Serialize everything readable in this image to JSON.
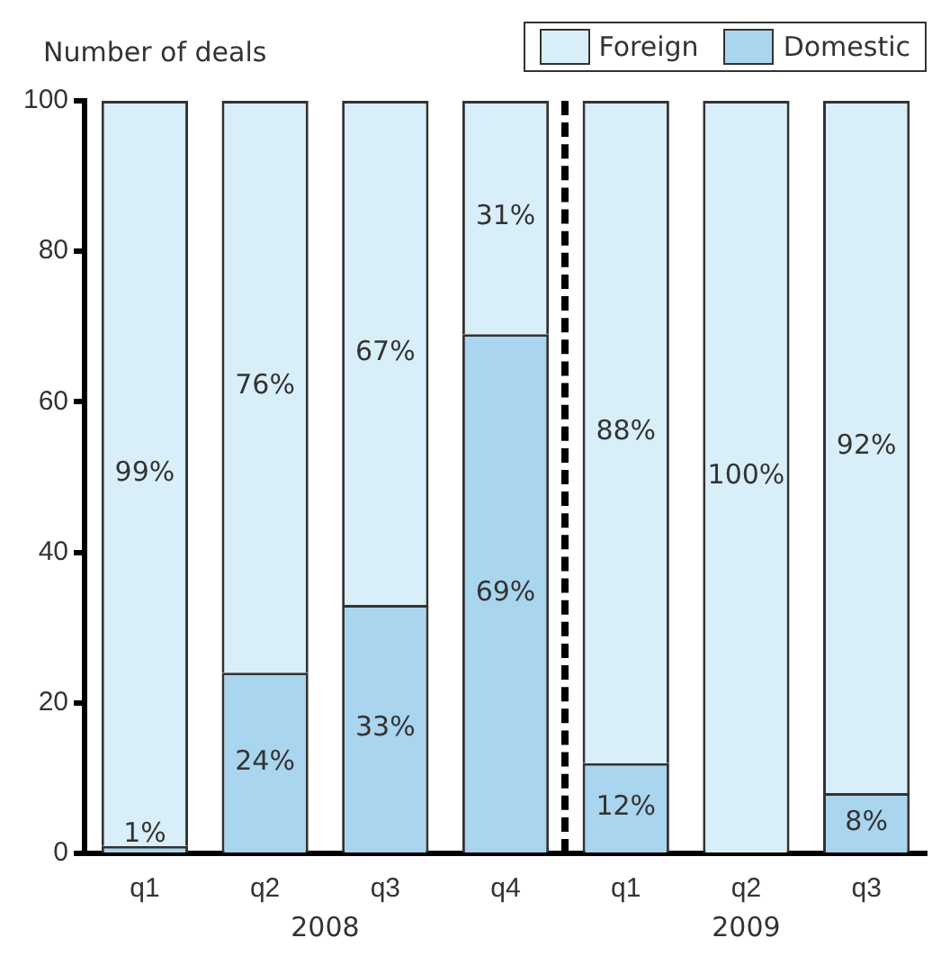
{
  "chart_data": {
    "type": "bar",
    "stacked": true,
    "ylabel": "Number of deals",
    "categories": [
      "q1",
      "q2",
      "q3",
      "q4",
      "q1",
      "q2",
      "q3"
    ],
    "series": [
      {
        "name": "Domestic",
        "color": "#a9d5ee",
        "values": [
          1,
          24,
          33,
          69,
          12,
          0,
          8
        ],
        "value_labels": [
          "1%",
          "24%",
          "33%",
          "69%",
          "12%",
          null,
          "8%"
        ]
      },
      {
        "name": "Foreign",
        "color": "#d8eff9",
        "values": [
          99,
          76,
          67,
          31,
          88,
          100,
          92
        ],
        "value_labels": [
          "99%",
          "76%",
          "67%",
          "31%",
          "88%",
          "100%",
          "92%"
        ]
      }
    ],
    "ylim": [
      0,
      100
    ],
    "yticks": [
      0,
      20,
      40,
      60,
      80,
      100
    ],
    "grid": false,
    "legend": "top right",
    "annotations": [
      "2008",
      "2009"
    ]
  }
}
